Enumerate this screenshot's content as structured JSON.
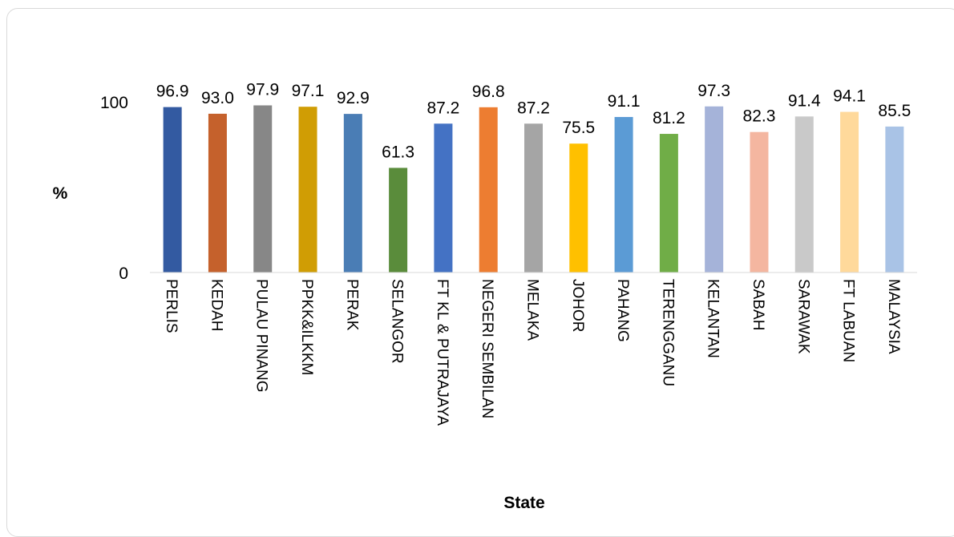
{
  "chart_data": {
    "type": "bar",
    "xlabel": "State",
    "ylabel": "%",
    "ylim": [
      0,
      100
    ],
    "yticks": [
      0,
      100
    ],
    "grid": false,
    "categories": [
      "PERLIS",
      "KEDAH",
      "PULAU PINANG",
      "PPKK&ILKKM",
      "PERAK",
      "SELANGOR",
      "FT KL & PUTRAJAYA",
      "NEGERI SEMBILAN",
      "MELAKA",
      "JOHOR",
      "PAHANG",
      "TERENGGANU",
      "KELANTAN",
      "SABAH",
      "SARAWAK",
      "FT LABUAN",
      "MALAYSIA"
    ],
    "values": [
      96.9,
      93.0,
      97.9,
      97.1,
      92.9,
      61.3,
      87.2,
      96.8,
      87.2,
      75.5,
      91.1,
      81.2,
      97.3,
      82.3,
      91.4,
      94.1,
      85.5
    ],
    "value_labels": [
      "96.9",
      "93.0",
      "97.9",
      "97.1",
      "92.9",
      "61.3",
      "87.2",
      "96.8",
      "87.2",
      "75.5",
      "91.1",
      "81.2",
      "97.3",
      "82.3",
      "91.4",
      "94.1",
      "85.5"
    ],
    "colors": [
      "#335aa1",
      "#c5612c",
      "#878787",
      "#d09d04",
      "#4a7db5",
      "#5a8c3b",
      "#4472c4",
      "#ed7d31",
      "#a5a5a5",
      "#ffc000",
      "#5b9bd5",
      "#70ad47",
      "#a5b3d9",
      "#f4b6a0",
      "#c9c9c9",
      "#ffd99b",
      "#a9c3e6"
    ]
  }
}
